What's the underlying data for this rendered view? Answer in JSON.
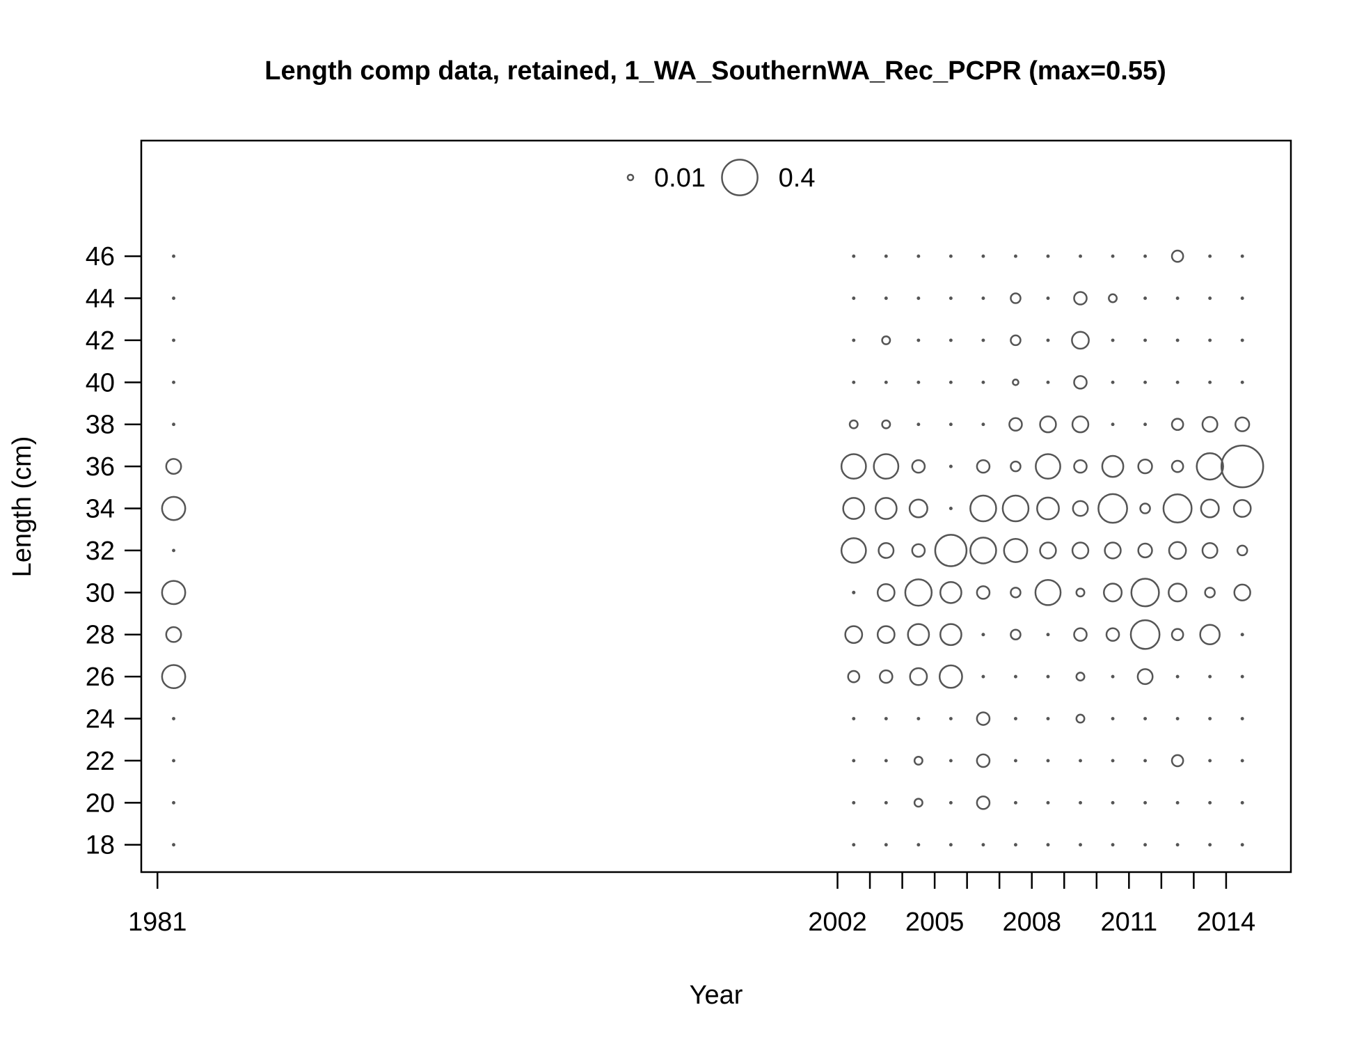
{
  "chart_data": {
    "type": "scatter",
    "title": "Length comp data, retained, 1_WA_SouthernWA_Rec_PCPR (max=0.55)",
    "xlabel": "Year",
    "ylabel": "Length (cm)",
    "xlim": [
      1980.5,
      2016
    ],
    "ylim": [
      16.7,
      51.5
    ],
    "x_ticks": [
      1981,
      2002,
      2003,
      2004,
      2005,
      2006,
      2007,
      2008,
      2009,
      2010,
      2011,
      2012,
      2013,
      2014
    ],
    "x_tick_labels": [
      "1981",
      "2002",
      "2005",
      "2008",
      "2011",
      "2014"
    ],
    "y_ticks": [
      18,
      20,
      22,
      24,
      26,
      28,
      30,
      32,
      34,
      36,
      38,
      40,
      42,
      44,
      46
    ],
    "bins": [
      18,
      20,
      22,
      24,
      26,
      28,
      30,
      32,
      34,
      36,
      38,
      40,
      42,
      44,
      46
    ],
    "max_proportion": 0.55,
    "legend": {
      "placement": "top-center",
      "entries": [
        {
          "label": "0.01",
          "value": 0.01
        },
        {
          "label": "0.4",
          "value": 0.4
        }
      ]
    },
    "series": [
      {
        "x": 1981.5,
        "values": [
          0,
          0,
          0,
          0,
          0.17,
          0.07,
          0.17,
          0,
          0.17,
          0.07,
          0,
          0,
          0,
          0,
          0
        ]
      },
      {
        "x": 2002.5,
        "values": [
          0,
          0,
          0,
          0,
          0.04,
          0.09,
          0.001,
          0.19,
          0.14,
          0.19,
          0.02,
          0,
          0,
          0,
          0
        ]
      },
      {
        "x": 2003.5,
        "values": [
          0,
          0,
          0,
          0,
          0.05,
          0.09,
          0.09,
          0.07,
          0.14,
          0.19,
          0.02,
          0,
          0.02,
          0,
          0
        ]
      },
      {
        "x": 2004.5,
        "values": [
          0,
          0.02,
          0.02,
          0,
          0.09,
          0.14,
          0.22,
          0.05,
          0.1,
          0.05,
          0,
          0,
          0,
          0,
          0
        ]
      },
      {
        "x": 2005.5,
        "values": [
          0,
          0,
          0,
          0,
          0.16,
          0.14,
          0.14,
          0.31,
          0.001,
          0.001,
          0,
          0,
          0,
          0,
          0
        ]
      },
      {
        "x": 2006.5,
        "values": [
          0,
          0.05,
          0.05,
          0.05,
          0,
          0.001,
          0.05,
          0.21,
          0.21,
          0.05,
          0,
          0,
          0,
          0,
          0
        ]
      },
      {
        "x": 2007.5,
        "values": [
          0,
          0,
          0,
          0,
          0,
          0.03,
          0.03,
          0.17,
          0.21,
          0.03,
          0.05,
          0.01,
          0.03,
          0.03,
          0
        ]
      },
      {
        "x": 2008.5,
        "values": [
          0,
          0,
          0,
          0,
          0,
          0,
          0.2,
          0.08,
          0.15,
          0.19,
          0.08,
          0,
          0,
          0,
          0
        ]
      },
      {
        "x": 2009.5,
        "values": [
          0,
          0,
          0,
          0.02,
          0.02,
          0.05,
          0.02,
          0.08,
          0.07,
          0.05,
          0.08,
          0.05,
          0.09,
          0.05,
          0
        ]
      },
      {
        "x": 2010.5,
        "values": [
          0,
          0,
          0,
          0,
          0,
          0.05,
          0.1,
          0.08,
          0.26,
          0.14,
          0,
          0,
          0,
          0.02,
          0
        ]
      },
      {
        "x": 2011.5,
        "values": [
          0,
          0,
          0,
          0,
          0.07,
          0.26,
          0.24,
          0.06,
          0.03,
          0.06,
          0,
          0,
          0,
          0,
          0
        ]
      },
      {
        "x": 2012.5,
        "values": [
          0,
          0,
          0.04,
          0,
          0,
          0.04,
          0.1,
          0.09,
          0.25,
          0.04,
          0.04,
          0,
          0,
          0,
          0.04
        ]
      },
      {
        "x": 2013.5,
        "values": [
          0,
          0,
          0,
          0,
          0,
          0.12,
          0.03,
          0.07,
          0.1,
          0.22,
          0.07,
          0,
          0,
          0,
          0
        ]
      },
      {
        "x": 2014.5,
        "values": [
          0,
          0,
          0,
          0,
          0,
          0.001,
          0.08,
          0.03,
          0.09,
          0.55,
          0.06,
          0,
          0,
          0,
          0
        ]
      }
    ]
  }
}
